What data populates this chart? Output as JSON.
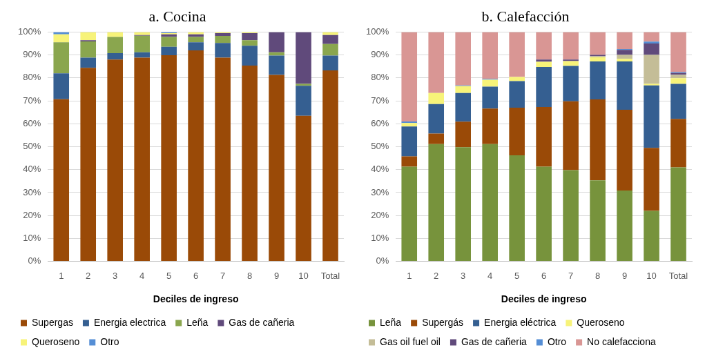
{
  "chart_data": [
    {
      "type": "bar",
      "title": "a. Cocina",
      "xlabel": "Deciles de ingreso",
      "categories": [
        "1",
        "2",
        "3",
        "4",
        "5",
        "6",
        "7",
        "8",
        "9",
        "10",
        "Total"
      ],
      "stacked": true,
      "ylim": [
        0,
        100
      ],
      "yticks": [
        {
          "value": 0,
          "label": "0%"
        },
        {
          "value": 10,
          "label": "10%"
        },
        {
          "value": 20,
          "label": "20%"
        },
        {
          "value": 30,
          "label": "30%"
        },
        {
          "value": 40,
          "label": "40%"
        },
        {
          "value": 50,
          "label": "50%"
        },
        {
          "value": 60,
          "label": "60%"
        },
        {
          "value": 70,
          "label": "70%"
        },
        {
          "value": 80,
          "label": "80%"
        },
        {
          "value": 90,
          "label": "90%"
        },
        {
          "value": 100,
          "label": "100%"
        }
      ],
      "grid": "y",
      "legend": "bottom",
      "series": [
        {
          "name": "Supergas",
          "color": "#9a4a07",
          "values": [
            70.7,
            84.4,
            88.0,
            88.8,
            89.9,
            92.0,
            88.8,
            85.4,
            81.3,
            63.5,
            83.3
          ]
        },
        {
          "name": "Energia electrica",
          "color": "#355f91",
          "values": [
            11.3,
            4.4,
            2.8,
            2.4,
            3.7,
            3.5,
            6.4,
            8.6,
            8.4,
            13.1,
            6.4
          ]
        },
        {
          "name": "Leña",
          "color": "#8aa64e",
          "values": [
            13.5,
            7.1,
            7.1,
            7.2,
            4.3,
            2.4,
            3.1,
            2.4,
            1.5,
            0.8,
            5.1
          ]
        },
        {
          "name": "Gas de cañeria",
          "color": "#604a7b",
          "values": [
            0,
            0.5,
            0,
            0.3,
            1.1,
            1.1,
            1.2,
            3.1,
            8.8,
            22.6,
            3.9
          ]
        },
        {
          "name": "Queroseno",
          "color": "#f7f379",
          "values": [
            3.5,
            3.6,
            2.1,
            1.3,
            0.5,
            1.0,
            0.5,
            0.5,
            0,
            0,
            1.3
          ]
        },
        {
          "name": "Otro",
          "color": "#558ed5",
          "values": [
            1.0,
            0,
            0,
            0,
            0.5,
            0,
            0,
            0,
            0,
            0,
            0
          ]
        }
      ]
    },
    {
      "type": "bar",
      "title": "b. Calefacción",
      "xlabel": "Deciles de ingreso",
      "categories": [
        "1",
        "2",
        "3",
        "4",
        "5",
        "6",
        "7",
        "8",
        "9",
        "10",
        "Total"
      ],
      "stacked": true,
      "ylim": [
        0,
        100
      ],
      "yticks": [
        {
          "value": 0,
          "label": "0%"
        },
        {
          "value": 10,
          "label": "10%"
        },
        {
          "value": 20,
          "label": "20%"
        },
        {
          "value": 30,
          "label": "30%"
        },
        {
          "value": 40,
          "label": "40%"
        },
        {
          "value": 50,
          "label": "50%"
        },
        {
          "value": 60,
          "label": "60%"
        },
        {
          "value": 70,
          "label": "70%"
        },
        {
          "value": 80,
          "label": "80%"
        },
        {
          "value": 90,
          "label": "90%"
        },
        {
          "value": 100,
          "label": "100%"
        }
      ],
      "grid": "y",
      "legend": "bottom",
      "series": [
        {
          "name": "Leña",
          "color": "#77933c",
          "values": [
            41.3,
            51.1,
            49.8,
            51.1,
            46.2,
            41.3,
            39.8,
            35.3,
            30.9,
            22.0,
            41.0
          ]
        },
        {
          "name": "Supergás",
          "color": "#9a4a07",
          "values": [
            4.5,
            4.6,
            11.1,
            15.5,
            20.8,
            26.0,
            30.0,
            35.3,
            35.2,
            27.5,
            21.1
          ]
        },
        {
          "name": "Energia eléctrica",
          "color": "#355f91",
          "values": [
            13.0,
            12.9,
            12.5,
            9.6,
            11.6,
            17.5,
            15.4,
            16.6,
            21.1,
            27.2,
            15.3
          ]
        },
        {
          "name": "Queroseno",
          "color": "#f7f379",
          "values": [
            1.5,
            4.8,
            3.0,
            3.0,
            1.8,
            2.2,
            2.1,
            1.8,
            1.1,
            0.7,
            2.5
          ]
        },
        {
          "name": "Gas oil fuel oil",
          "color": "#c4bd97",
          "values": [
            0,
            0,
            0,
            0,
            0,
            0,
            0,
            0.5,
            1.7,
            12.6,
            1.5
          ]
        },
        {
          "name": "Gas de cañeria",
          "color": "#604a7b",
          "values": [
            0,
            0,
            0,
            0,
            0,
            1.0,
            0.7,
            0.5,
            2.2,
            5.0,
            0.8
          ]
        },
        {
          "name": "Otro",
          "color": "#558ed5",
          "values": [
            0.7,
            0,
            0.3,
            0.4,
            0,
            0,
            0,
            0,
            0.4,
            0.8,
            0.4
          ]
        },
        {
          "name": "No calefacciona",
          "color": "#d99694",
          "values": [
            39.0,
            26.6,
            23.3,
            20.4,
            19.6,
            12.0,
            12.0,
            10.0,
            7.4,
            4.2,
            17.4
          ]
        }
      ]
    }
  ]
}
